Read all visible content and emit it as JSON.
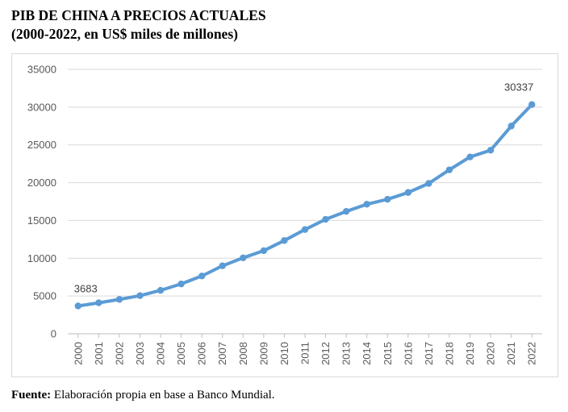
{
  "header": {
    "title_line1": "PIB DE CHINA A PRECIOS ACTUALES",
    "title_line2": "(2000-2022, en US$ miles de millones)"
  },
  "footer": {
    "source_label": "Fuente:",
    "source_text": " Elaboración propia en base a Banco Mundial."
  },
  "chart_data": {
    "type": "line",
    "x": [
      "2000",
      "2001",
      "2002",
      "2003",
      "2004",
      "2005",
      "2006",
      "2007",
      "2008",
      "2009",
      "2010",
      "2011",
      "2012",
      "2013",
      "2014",
      "2015",
      "2016",
      "2017",
      "2018",
      "2019",
      "2020",
      "2021",
      "2022"
    ],
    "series": [
      {
        "values": [
          3683,
          4100,
          4550,
          5050,
          5750,
          6600,
          7650,
          9000,
          10050,
          11000,
          12350,
          13800,
          15150,
          16200,
          17150,
          17800,
          18700,
          19900,
          21700,
          23400,
          24300,
          27500,
          30337
        ],
        "color": "#5b9bd5"
      }
    ],
    "data_labels": [
      {
        "year": "2000",
        "text": "3683"
      },
      {
        "year": "2022",
        "text": "30337"
      }
    ],
    "yticks": [
      "0",
      "5000",
      "10000",
      "15000",
      "20000",
      "25000",
      "30000",
      "35000"
    ],
    "ylim": [
      0,
      35000
    ],
    "grid": true,
    "legend": "none",
    "xlabel": "",
    "ylabel": ""
  }
}
